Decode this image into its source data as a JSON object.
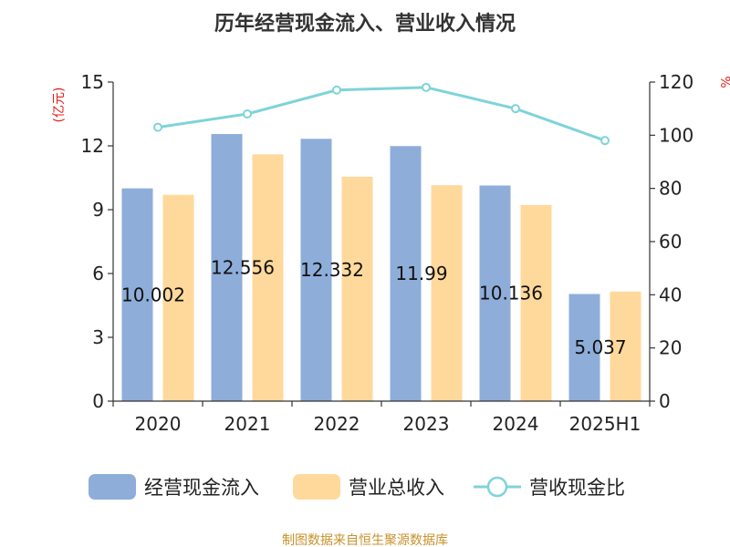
{
  "chart_data": {
    "type": "bar",
    "title": "历年经营现金流入、营业收入情况",
    "left_unit": "(亿元)",
    "right_unit": "%",
    "categories": [
      "2020",
      "2021",
      "2022",
      "2023",
      "2024",
      "2025H1"
    ],
    "y_left": {
      "min": 0,
      "max": 15,
      "ticks": [
        "0",
        "3",
        "6",
        "9",
        "12",
        "15"
      ]
    },
    "y_right": {
      "min": 0,
      "max": 120,
      "ticks": [
        "0",
        "20",
        "40",
        "60",
        "80",
        "100",
        "120"
      ]
    },
    "series": [
      {
        "name": "经营现金流入",
        "type": "bar",
        "axis": "left",
        "color": "#8eadd9",
        "values": [
          10.002,
          12.556,
          12.332,
          11.99,
          10.136,
          5.037
        ],
        "labels": [
          "10.002",
          "12.556",
          "12.332",
          "11.99",
          "10.136",
          "5.037"
        ]
      },
      {
        "name": "营业总收入",
        "type": "bar",
        "axis": "left",
        "color": "#ffd99b",
        "values": [
          9.7,
          11.6,
          10.55,
          10.15,
          9.22,
          5.15
        ]
      },
      {
        "name": "营收现金比",
        "type": "line",
        "axis": "right",
        "color": "#7fd3da",
        "values": [
          103,
          108,
          117,
          118,
          110,
          98
        ]
      }
    ],
    "grid": false,
    "legend_position": "bottom"
  },
  "footer": {
    "source": "制图数据来自恒生聚源数据库"
  }
}
